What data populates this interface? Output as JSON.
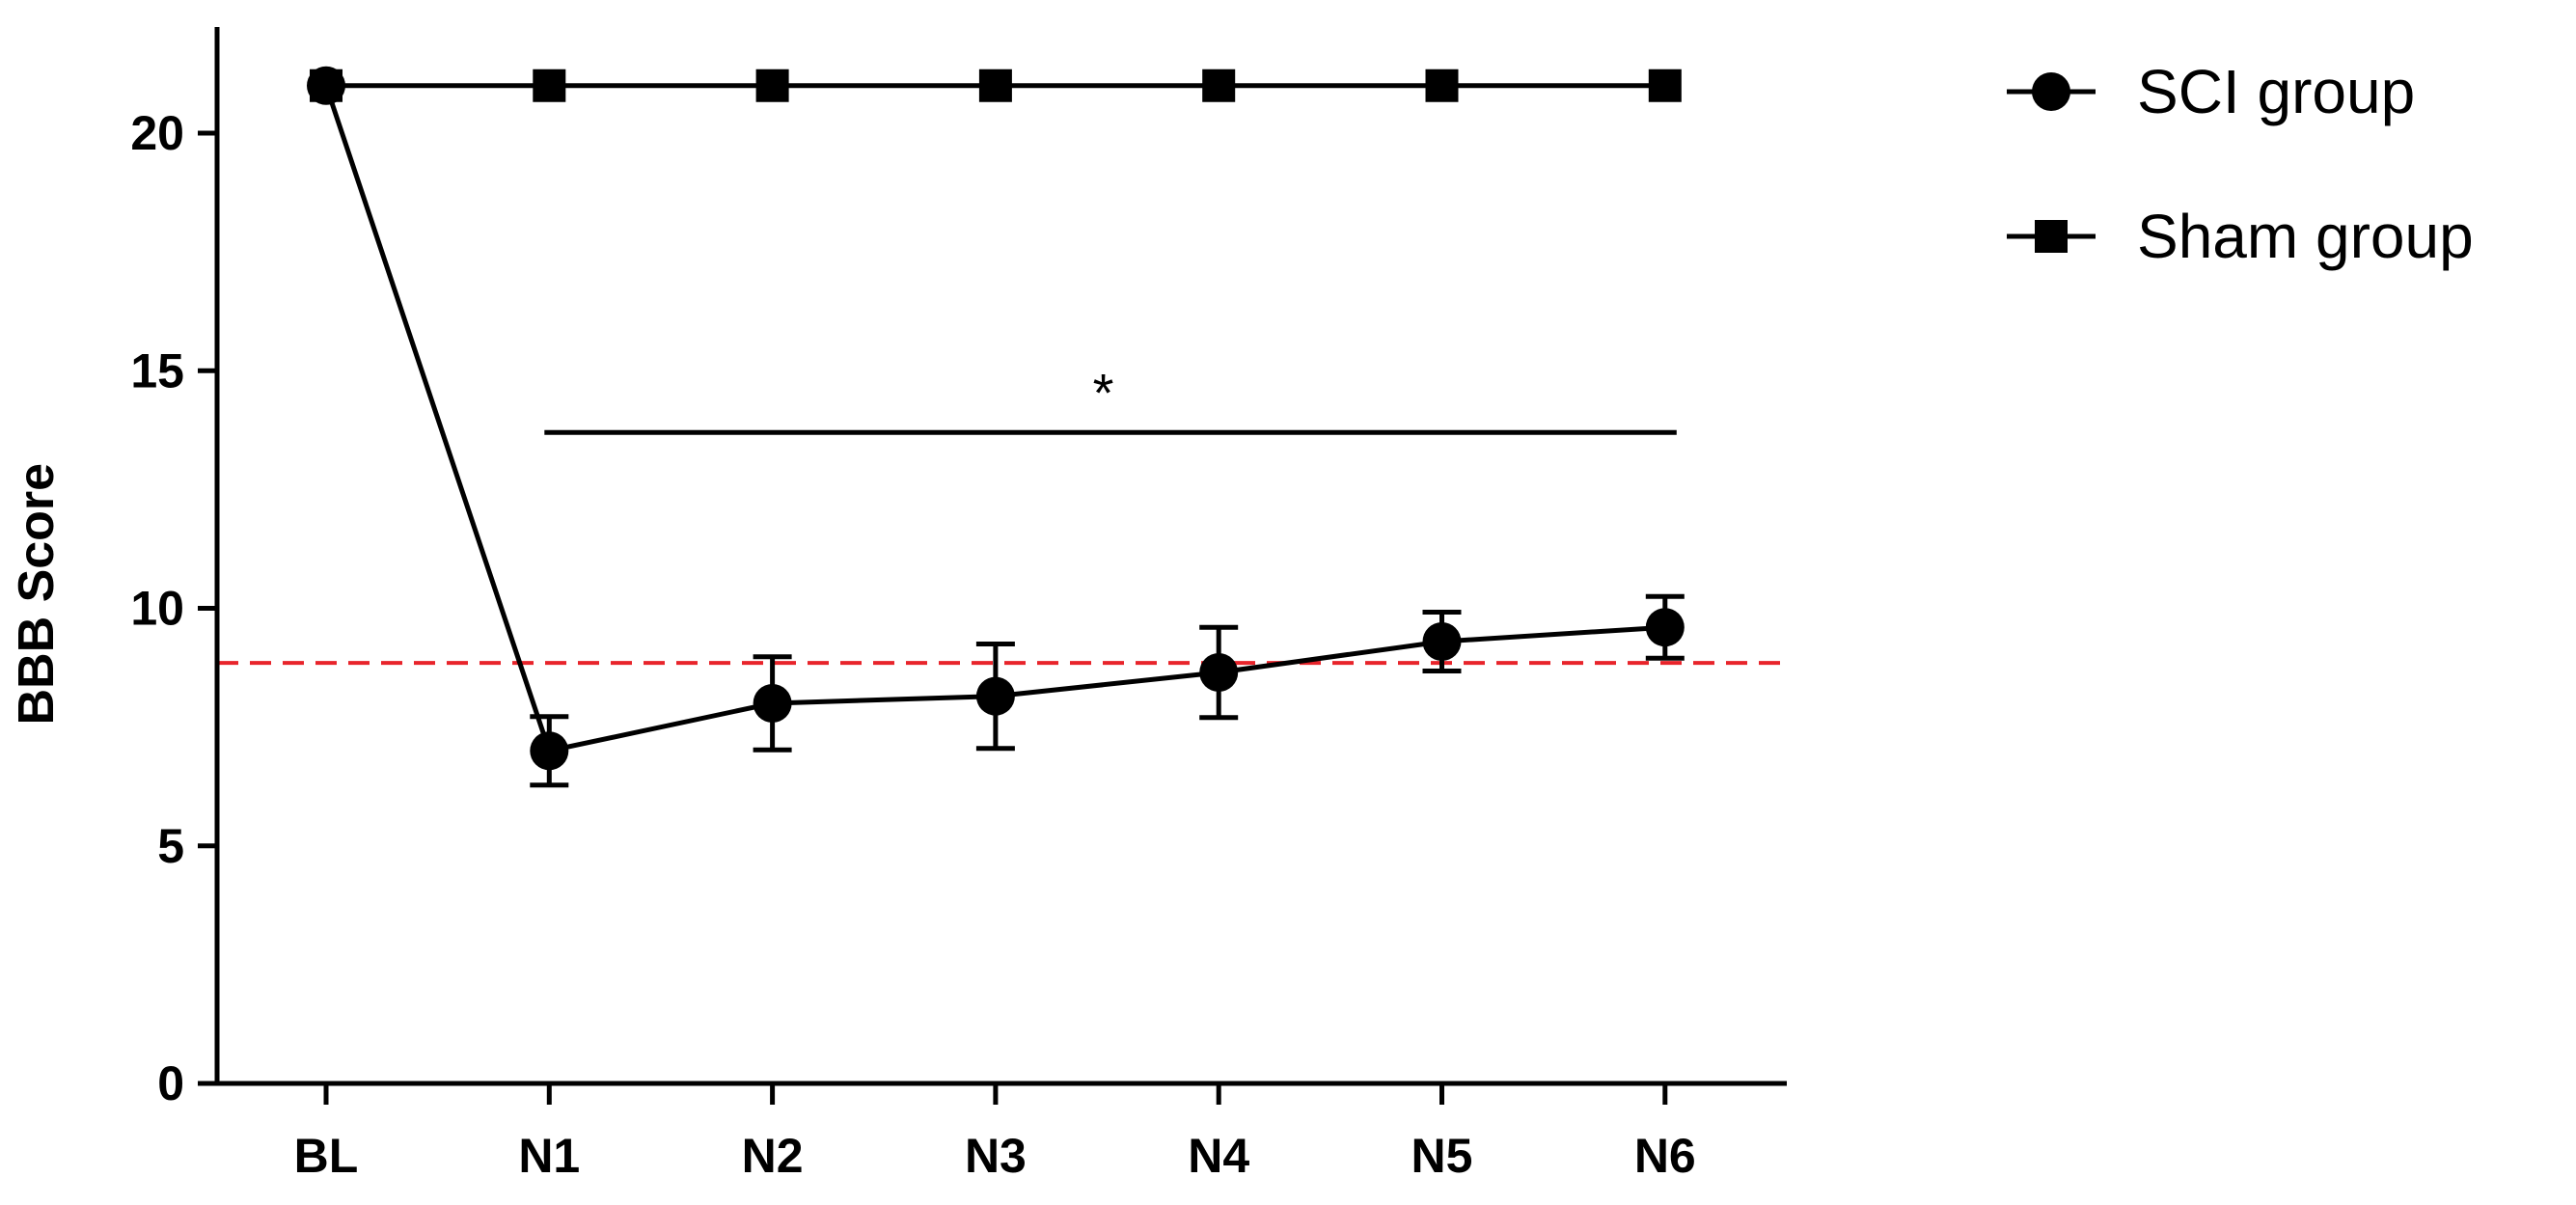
{
  "chart_data": {
    "type": "line",
    "title": "",
    "xlabel": "",
    "ylabel": "BBB Score",
    "categories": [
      "BL",
      "N1",
      "N2",
      "N3",
      "N4",
      "N5",
      "N6"
    ],
    "ylim": [
      0,
      22
    ],
    "yticks": [
      0,
      5,
      10,
      15,
      20
    ],
    "grid": false,
    "legend_position": "top-right",
    "series": [
      {
        "name": "SCI group",
        "marker": "circle",
        "color": "#000000",
        "values": [
          21,
          7.0,
          8.0,
          8.15,
          8.65,
          9.3,
          9.6
        ],
        "error": [
          0,
          0.72,
          0.98,
          1.1,
          0.95,
          0.62,
          0.65
        ]
      },
      {
        "name": "Sham group",
        "marker": "square",
        "color": "#000000",
        "values": [
          21,
          21,
          21,
          21,
          21,
          21,
          21
        ],
        "error": [
          0,
          0,
          0,
          0,
          0,
          0,
          0
        ]
      }
    ],
    "reference_line": {
      "y": 8.85,
      "color": "#e8242b",
      "style": "dashed"
    },
    "annotations": [
      {
        "text": "*",
        "bracket_from": "N1",
        "bracket_to": "N6",
        "y": 13.7
      }
    ]
  }
}
